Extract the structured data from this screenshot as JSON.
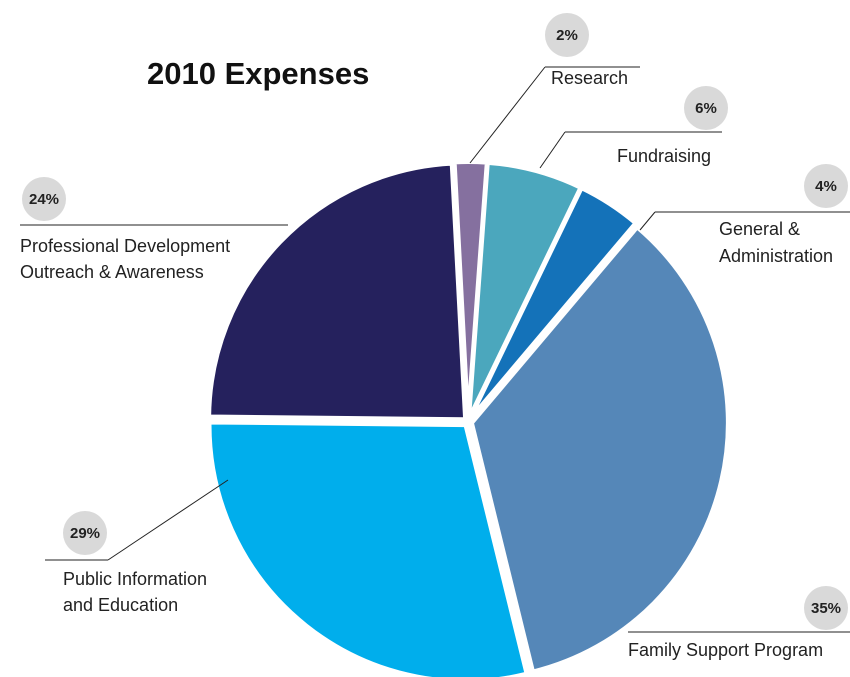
{
  "chart_data": {
    "type": "pie",
    "title": "2010 Expenses",
    "slices": [
      {
        "label": "Research",
        "value": 2,
        "value_label": "2%",
        "color": "#85709f"
      },
      {
        "label": "Fundraising",
        "value": 6,
        "value_label": "6%",
        "color": "#4ba7bd"
      },
      {
        "label": "General & Administration",
        "value": 4,
        "value_label": "4%",
        "color": "#1472b9"
      },
      {
        "label": "Family Support Program",
        "value": 35,
        "value_label": "35%",
        "color": "#5587b8"
      },
      {
        "label": "Public Information and Education",
        "value": 29,
        "value_label": "29%",
        "color": "#00aeec"
      },
      {
        "label": "Professional Development Outreach & Awareness",
        "value": 24,
        "value_label": "24%",
        "color": "#25215d"
      }
    ]
  }
}
